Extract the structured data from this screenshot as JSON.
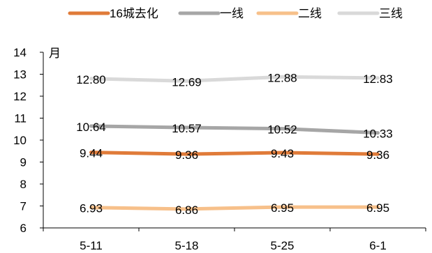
{
  "chart_data": {
    "type": "line",
    "title": "",
    "xlabel": "",
    "ylabel": "月",
    "ylim": [
      6,
      14
    ],
    "yticks": [
      6,
      7,
      8,
      9,
      10,
      11,
      12,
      13,
      14
    ],
    "categories": [
      "5-11",
      "5-18",
      "5-25",
      "6-1"
    ],
    "grid": false,
    "legend_position": "top",
    "series": [
      {
        "name": "16城去化",
        "color": "#e07b39",
        "values": [
          9.44,
          9.36,
          9.43,
          9.36
        ]
      },
      {
        "name": "一线",
        "color": "#a6a6a6",
        "values": [
          10.64,
          10.57,
          10.52,
          10.33
        ]
      },
      {
        "name": "二线",
        "color": "#f7c08a",
        "values": [
          6.93,
          6.86,
          6.95,
          6.95
        ]
      },
      {
        "name": "三线",
        "color": "#d9d9d9",
        "values": [
          12.8,
          12.69,
          12.88,
          12.83
        ]
      }
    ],
    "value_labels": [
      [
        "9.44",
        "9.36",
        "9.43",
        "9.36"
      ],
      [
        "10.64",
        "10.57",
        "10.52",
        "10.33"
      ],
      [
        "6.93",
        "6.86",
        "6.95",
        "6.95"
      ],
      [
        "12.80",
        "12.69",
        "12.88",
        "12.83"
      ]
    ]
  }
}
